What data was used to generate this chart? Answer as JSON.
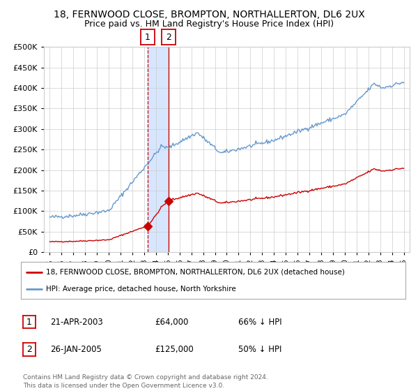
{
  "title1": "18, FERNWOOD CLOSE, BROMPTON, NORTHALLERTON, DL6 2UX",
  "title2": "Price paid vs. HM Land Registry's House Price Index (HPI)",
  "legend_line1": "18, FERNWOOD CLOSE, BROMPTON, NORTHALLERTON, DL6 2UX (detached house)",
  "legend_line2": "HPI: Average price, detached house, North Yorkshire",
  "transaction1_date": "21-APR-2003",
  "transaction1_price": "£64,000",
  "transaction1_hpi": "66% ↓ HPI",
  "transaction1_x": 2003.3,
  "transaction1_y": 64000,
  "transaction2_date": "26-JAN-2005",
  "transaction2_price": "£125,000",
  "transaction2_hpi": "50% ↓ HPI",
  "transaction2_x": 2005.07,
  "transaction2_y": 125000,
  "footer": "Contains HM Land Registry data © Crown copyright and database right 2024.\nThis data is licensed under the Open Government Licence v3.0.",
  "ylim": [
    0,
    500000
  ],
  "yticks": [
    0,
    50000,
    100000,
    150000,
    200000,
    250000,
    300000,
    350000,
    400000,
    450000,
    500000
  ],
  "xlim_start": 1995,
  "xlim_end": 2025,
  "red_color": "#cc0000",
  "blue_color": "#6699cc",
  "shade_color": "#cce0ff",
  "vline_color": "#cc0000",
  "bg_color": "#ffffff",
  "grid_color": "#cccccc"
}
